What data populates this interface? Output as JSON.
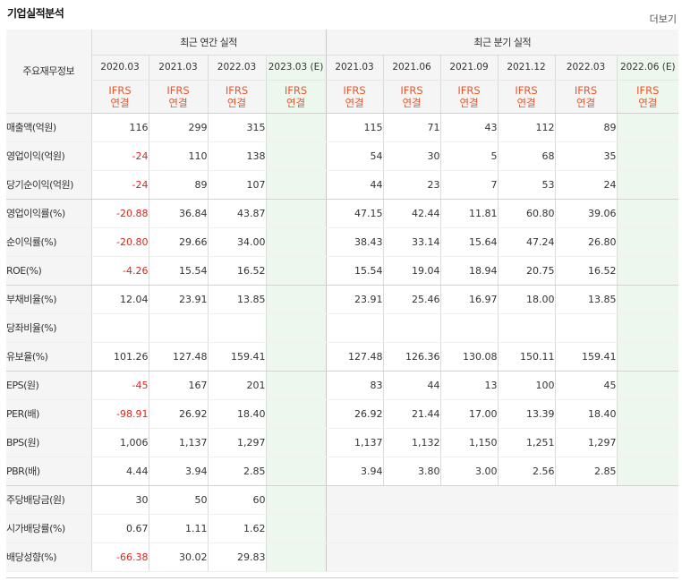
{
  "title": "기업실적분석",
  "more": "더보기",
  "header": {
    "row_label": "주요재무정보",
    "annual_group": "최근 연간 실적",
    "quarter_group": "최근 분기 실적",
    "annual_periods": [
      "2020.03",
      "2021.03",
      "2022.03",
      "2023.03 (E)"
    ],
    "quarter_periods": [
      "2021.03",
      "2021.06",
      "2021.09",
      "2021.12",
      "2022.03",
      "2022.06 (E)"
    ],
    "accounting_line1": "IFRS",
    "accounting_line2": "연결"
  },
  "rows": [
    {
      "label": "매출액(억원)",
      "annual": [
        "116",
        "299",
        "315",
        ""
      ],
      "quarter": [
        "115",
        "71",
        "43",
        "112",
        "89",
        ""
      ]
    },
    {
      "label": "영업이익(억원)",
      "annual": [
        "-24",
        "110",
        "138",
        ""
      ],
      "quarter": [
        "54",
        "30",
        "5",
        "68",
        "35",
        ""
      ]
    },
    {
      "label": "당기순이익(억원)",
      "annual": [
        "-24",
        "89",
        "107",
        ""
      ],
      "quarter": [
        "44",
        "23",
        "7",
        "53",
        "24",
        ""
      ]
    },
    {
      "label": "영업이익률(%)",
      "annual": [
        "-20.88",
        "36.84",
        "43.87",
        ""
      ],
      "quarter": [
        "47.15",
        "42.44",
        "11.81",
        "60.80",
        "39.06",
        ""
      ]
    },
    {
      "label": "순이익률(%)",
      "annual": [
        "-20.80",
        "29.66",
        "34.00",
        ""
      ],
      "quarter": [
        "38.43",
        "33.14",
        "15.64",
        "47.24",
        "26.80",
        ""
      ]
    },
    {
      "label": "ROE(%)",
      "annual": [
        "-4.26",
        "15.54",
        "16.52",
        ""
      ],
      "quarter": [
        "15.54",
        "19.04",
        "18.94",
        "20.75",
        "16.52",
        ""
      ]
    },
    {
      "label": "부채비율(%)",
      "annual": [
        "12.04",
        "23.91",
        "13.85",
        ""
      ],
      "quarter": [
        "23.91",
        "25.46",
        "16.97",
        "18.00",
        "13.85",
        ""
      ]
    },
    {
      "label": "당좌비율(%)",
      "annual": [
        "",
        "",
        "",
        ""
      ],
      "quarter": [
        "",
        "",
        "",
        "",
        "",
        ""
      ]
    },
    {
      "label": "유보율(%)",
      "annual": [
        "101.26",
        "127.48",
        "159.41",
        ""
      ],
      "quarter": [
        "127.48",
        "126.36",
        "130.08",
        "150.11",
        "159.41",
        ""
      ]
    },
    {
      "label": "EPS(원)",
      "annual": [
        "-45",
        "167",
        "201",
        ""
      ],
      "quarter": [
        "83",
        "44",
        "13",
        "100",
        "45",
        ""
      ]
    },
    {
      "label": "PER(배)",
      "annual": [
        "-98.91",
        "26.92",
        "18.40",
        ""
      ],
      "quarter": [
        "26.92",
        "21.44",
        "17.00",
        "13.39",
        "18.40",
        ""
      ]
    },
    {
      "label": "BPS(원)",
      "annual": [
        "1,006",
        "1,137",
        "1,297",
        ""
      ],
      "quarter": [
        "1,137",
        "1,132",
        "1,150",
        "1,251",
        "1,297",
        ""
      ]
    },
    {
      "label": "PBR(배)",
      "annual": [
        "4.44",
        "3.94",
        "2.85",
        ""
      ],
      "quarter": [
        "3.94",
        "3.80",
        "3.00",
        "2.56",
        "2.85",
        ""
      ]
    },
    {
      "label": "주당배당금(원)",
      "annual": [
        "30",
        "50",
        "60",
        ""
      ],
      "quarter": null
    },
    {
      "label": "시가배당률(%)",
      "annual": [
        "0.67",
        "1.11",
        "1.62",
        ""
      ],
      "quarter": null
    },
    {
      "label": "배당성향(%)",
      "annual": [
        "-66.38",
        "30.02",
        "29.83",
        ""
      ],
      "quarter": null
    }
  ],
  "colors": {
    "negative": "#d9261c",
    "accounting": "#e8572e",
    "forecast_bg": "#eef7ee",
    "header_bg": "#f5f5f5"
  }
}
